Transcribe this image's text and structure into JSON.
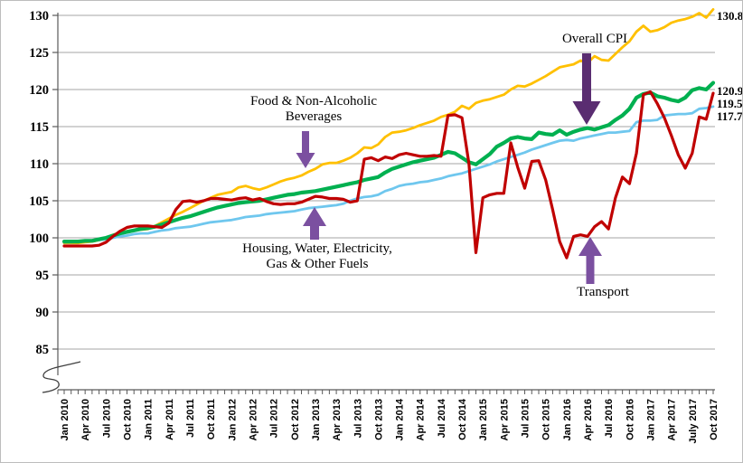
{
  "chart_data": {
    "type": "line",
    "title": "",
    "x_axis": {
      "months_count": 94,
      "tick_label_every": 3,
      "tick_labels": [
        "Jan 2010",
        "Apr 2010",
        "Jul 2010",
        "Oct 2010",
        "Jan 2011",
        "Apr 2011",
        "Jul 2011",
        "Oct 2011",
        "Jan 2012",
        "Apr 2012",
        "Jul 2012",
        "Oct 2012",
        "Jan 2013",
        "Apr 2013",
        "Jul 2013",
        "Oct 2013",
        "Jan 2014",
        "Apr 2014",
        "Jul 2014",
        "Oct 2014",
        "Jan 2015",
        "Apr 2015",
        "Jul 2015",
        "Oct 2015",
        "Jan 2016",
        "Apr 2016",
        "Jul 2016",
        "Oct 2016",
        "Jan 2017",
        "Apr 2017",
        "July 2017",
        "Oct 2017"
      ]
    },
    "y_axis": {
      "ticks": [
        85,
        90,
        95,
        100,
        105,
        110,
        115,
        120,
        125,
        130
      ],
      "range": [
        85,
        130
      ],
      "axis_break_below": 85,
      "grid": true
    },
    "legend_position": "annotated-arrows",
    "arrow_colors": {
      "primary": "#7B50A0",
      "overall": "#5A2D71"
    },
    "series": [
      {
        "name": "Food & Non-Alcoholic Beverages",
        "color": "#FFC000",
        "width": 2.8,
        "end_label": "130.8",
        "values": [
          99.3,
          99.3,
          99.3,
          99.4,
          99.5,
          99.7,
          100.0,
          100.4,
          100.7,
          100.9,
          101.0,
          101.1,
          101.2,
          101.6,
          102.1,
          102.6,
          103.1,
          103.5,
          104.0,
          104.5,
          105.0,
          105.4,
          105.8,
          106.0,
          106.2,
          106.8,
          107.0,
          106.7,
          106.5,
          106.8,
          107.2,
          107.6,
          107.9,
          108.1,
          108.4,
          108.9,
          109.3,
          109.9,
          110.1,
          110.1,
          110.4,
          110.8,
          111.4,
          112.2,
          112.1,
          112.6,
          113.6,
          114.2,
          114.3,
          114.5,
          114.8,
          115.2,
          115.5,
          115.8,
          116.3,
          116.6,
          117.0,
          117.8,
          117.4,
          118.2,
          118.5,
          118.7,
          119.0,
          119.3,
          120.0,
          120.5,
          120.4,
          120.8,
          121.3,
          121.8,
          122.4,
          123.0,
          123.2,
          123.4,
          123.9,
          123.6,
          124.5,
          124.0,
          123.9,
          124.8,
          125.7,
          126.5,
          127.8,
          128.6,
          127.8,
          128.0,
          128.4,
          129.0,
          129.3,
          129.5,
          129.8,
          130.3,
          129.7,
          130.8
        ]
      },
      {
        "name": "Housing, Water, Electricity, Gas & Other Fuels",
        "color": "#6FC7EE",
        "width": 2.8,
        "end_label": "117.7",
        "values": [
          99.4,
          99.4,
          99.5,
          99.5,
          99.6,
          99.7,
          99.8,
          100.0,
          100.2,
          100.3,
          100.5,
          100.6,
          100.6,
          100.8,
          101.0,
          101.1,
          101.3,
          101.4,
          101.5,
          101.7,
          101.9,
          102.1,
          102.2,
          102.3,
          102.4,
          102.6,
          102.8,
          102.9,
          103.0,
          103.2,
          103.3,
          103.4,
          103.5,
          103.6,
          103.8,
          104.0,
          104.1,
          104.2,
          104.3,
          104.4,
          104.6,
          105.0,
          105.3,
          105.5,
          105.6,
          105.8,
          106.3,
          106.6,
          107.0,
          107.2,
          107.3,
          107.5,
          107.6,
          107.8,
          108.0,
          108.3,
          108.5,
          108.7,
          109.0,
          109.3,
          109.6,
          109.9,
          110.3,
          110.6,
          110.9,
          111.2,
          111.5,
          111.9,
          112.2,
          112.5,
          112.8,
          113.1,
          113.2,
          113.1,
          113.4,
          113.6,
          113.8,
          114.0,
          114.2,
          114.2,
          114.3,
          114.4,
          115.6,
          115.8,
          115.8,
          115.9,
          116.5,
          116.6,
          116.7,
          116.7,
          116.8,
          117.4,
          117.5,
          117.7
        ]
      },
      {
        "name": "Overall CPI",
        "color": "#00B050",
        "width": 4.2,
        "end_label": "120.9",
        "values": [
          99.5,
          99.5,
          99.5,
          99.6,
          99.6,
          99.8,
          100.0,
          100.3,
          100.6,
          100.8,
          101.0,
          101.2,
          101.3,
          101.5,
          101.8,
          102.1,
          102.4,
          102.7,
          102.9,
          103.2,
          103.5,
          103.8,
          104.1,
          104.3,
          104.5,
          104.7,
          104.8,
          104.9,
          105.0,
          105.2,
          105.4,
          105.6,
          105.8,
          105.9,
          106.1,
          106.2,
          106.3,
          106.5,
          106.7,
          106.9,
          107.1,
          107.3,
          107.5,
          107.8,
          108.0,
          108.2,
          108.8,
          109.3,
          109.6,
          109.9,
          110.2,
          110.4,
          110.6,
          110.8,
          111.2,
          111.6,
          111.4,
          110.8,
          110.2,
          109.9,
          110.6,
          111.3,
          112.3,
          112.8,
          113.4,
          113.6,
          113.4,
          113.3,
          114.2,
          114.0,
          113.9,
          114.5,
          113.9,
          114.3,
          114.6,
          114.8,
          114.6,
          114.9,
          115.2,
          115.9,
          116.5,
          117.4,
          118.9,
          119.4,
          119.6,
          119.1,
          118.9,
          118.6,
          118.4,
          118.9,
          119.9,
          120.2,
          120.0,
          120.9
        ]
      },
      {
        "name": "Transport",
        "color": "#C00000",
        "width": 3.2,
        "end_label": "119.5",
        "values": [
          98.9,
          98.9,
          98.9,
          98.9,
          98.9,
          99.0,
          99.4,
          100.2,
          100.9,
          101.4,
          101.6,
          101.6,
          101.6,
          101.5,
          101.4,
          102.0,
          103.8,
          104.9,
          105.0,
          104.8,
          105.0,
          105.3,
          105.3,
          105.2,
          105.1,
          105.3,
          105.4,
          105.1,
          105.3,
          104.9,
          104.6,
          104.5,
          104.6,
          104.6,
          104.8,
          105.2,
          105.6,
          105.5,
          105.3,
          105.3,
          105.2,
          104.8,
          105.0,
          110.6,
          110.8,
          110.4,
          110.9,
          110.7,
          111.2,
          111.4,
          111.2,
          111.0,
          111.0,
          111.1,
          111.0,
          116.5,
          116.6,
          116.2,
          110.0,
          98.0,
          105.4,
          105.8,
          106.0,
          106.0,
          112.8,
          109.5,
          106.7,
          110.3,
          110.4,
          107.8,
          103.8,
          99.5,
          97.3,
          100.2,
          100.4,
          100.2,
          101.5,
          102.2,
          101.2,
          105.4,
          108.2,
          107.3,
          111.4,
          119.3,
          119.7,
          118.1,
          116.2,
          113.8,
          111.2,
          109.4,
          111.4,
          116.3,
          116.0,
          119.5
        ]
      }
    ],
    "annotations": [
      {
        "id": "food",
        "lines": [
          "Food & Non-Alcoholic",
          "Beverages"
        ],
        "points_to": "Food & Non-Alcoholic Beverages"
      },
      {
        "id": "overall",
        "lines": [
          "Overall CPI"
        ],
        "points_to": "Overall CPI"
      },
      {
        "id": "housing",
        "lines": [
          "Housing, Water, Electricity,",
          "Gas & Other Fuels"
        ],
        "points_to": "Housing, Water, Electricity, Gas & Other Fuels"
      },
      {
        "id": "transport",
        "lines": [
          "Transport"
        ],
        "points_to": "Transport"
      }
    ]
  }
}
